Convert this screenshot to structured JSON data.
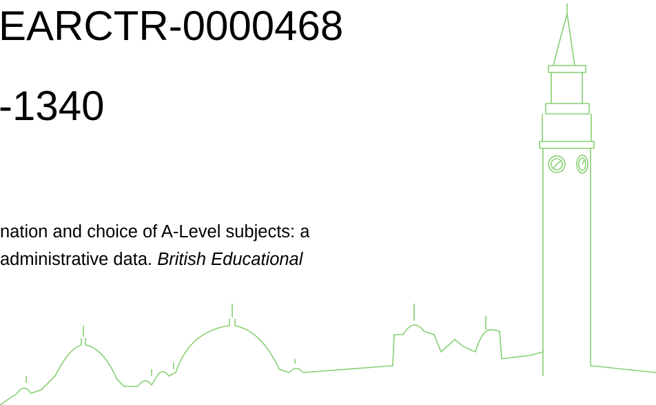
{
  "slide": {
    "heading_lines": [
      "EARCTR-0000468",
      "-1340"
    ],
    "citation": {
      "line1": "nation and choice of A-Level subjects: a",
      "line2_plain": "administrative data.",
      "line2_italic": "British Educational"
    }
  }
}
